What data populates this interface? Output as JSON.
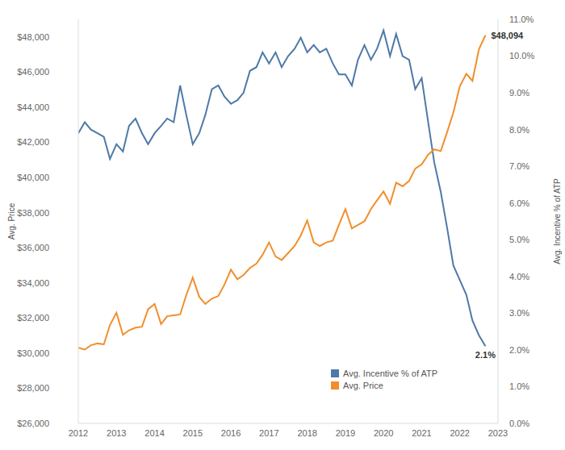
{
  "chart_data": {
    "type": "line",
    "x": [
      2012,
      2012.17,
      2012.33,
      2012.5,
      2012.67,
      2012.83,
      2013,
      2013.17,
      2013.33,
      2013.5,
      2013.67,
      2013.83,
      2014,
      2014.17,
      2014.33,
      2014.5,
      2014.67,
      2014.83,
      2015,
      2015.17,
      2015.33,
      2015.5,
      2015.67,
      2015.83,
      2016,
      2016.17,
      2016.33,
      2016.5,
      2016.67,
      2016.83,
      2017,
      2017.17,
      2017.33,
      2017.5,
      2017.67,
      2017.83,
      2018,
      2018.17,
      2018.33,
      2018.5,
      2018.67,
      2018.83,
      2019,
      2019.17,
      2019.33,
      2019.5,
      2019.67,
      2019.83,
      2020,
      2020.17,
      2020.33,
      2020.5,
      2020.67,
      2020.83,
      2021,
      2021.17,
      2021.33,
      2021.5,
      2021.67,
      2021.83,
      2022,
      2022.17,
      2022.33,
      2022.5,
      2022.67
    ],
    "series": [
      {
        "name": "Avg. Incentive % of ATP",
        "color": "#4e79a7",
        "axis": "y2",
        "values": [
          7.9,
          8.2,
          8.0,
          7.9,
          7.8,
          7.2,
          7.6,
          7.4,
          8.1,
          8.3,
          7.9,
          7.6,
          7.9,
          8.1,
          8.3,
          8.2,
          9.2,
          8.4,
          7.6,
          7.9,
          8.4,
          9.1,
          9.2,
          8.9,
          8.7,
          8.8,
          9.0,
          9.6,
          9.7,
          10.1,
          9.8,
          10.1,
          9.7,
          10.0,
          10.2,
          10.5,
          10.1,
          10.3,
          10.1,
          10.2,
          9.8,
          9.5,
          9.5,
          9.2,
          9.9,
          10.3,
          9.9,
          10.2,
          10.7,
          10.0,
          10.6,
          10.0,
          9.9,
          9.1,
          9.4,
          8.2,
          7.1,
          6.3,
          5.3,
          4.3,
          3.9,
          3.5,
          2.8,
          2.4,
          2.1
        ]
      },
      {
        "name": "Avg. Price",
        "color": "#f28e2b",
        "values": [
          30300,
          30200,
          30450,
          30550,
          30500,
          31600,
          32300,
          31050,
          31300,
          31450,
          31500,
          32500,
          32800,
          31650,
          32100,
          32150,
          32200,
          33300,
          34300,
          33200,
          32800,
          33100,
          33250,
          33900,
          34750,
          34200,
          34450,
          34850,
          35100,
          35600,
          36300,
          35500,
          35300,
          35700,
          36100,
          36700,
          37550,
          36300,
          36100,
          36300,
          36400,
          37300,
          38200,
          37100,
          37300,
          37500,
          38200,
          38700,
          39200,
          38500,
          39700,
          39500,
          39800,
          40500,
          40750,
          41300,
          41600,
          41500,
          42600,
          43700,
          45200,
          45900,
          45500,
          47300,
          48094
        ]
      }
    ],
    "y_label": "Avg. Price",
    "y2_label": "Avg. Incentive % of ATP",
    "xlim": [
      2012,
      2023
    ],
    "xticks": [
      2012,
      2013,
      2014,
      2015,
      2016,
      2017,
      2018,
      2019,
      2020,
      2021,
      2022,
      2023
    ],
    "ylim": [
      26000,
      49000
    ],
    "yticks": [
      {
        "value": 26000,
        "label": "$26,000"
      },
      {
        "value": 28000,
        "label": "$28,000"
      },
      {
        "value": 30000,
        "label": "$30,000"
      },
      {
        "value": 32000,
        "label": "$32,000"
      },
      {
        "value": 34000,
        "label": "$34,000"
      },
      {
        "value": 36000,
        "label": "$36,000"
      },
      {
        "value": 38000,
        "label": "$38,000"
      },
      {
        "value": 40000,
        "label": "$40,000"
      },
      {
        "value": 42000,
        "label": "$42,000"
      },
      {
        "value": 44000,
        "label": "$44,000"
      },
      {
        "value": 46000,
        "label": "$46,000"
      },
      {
        "value": 48000,
        "label": "$48,000"
      }
    ],
    "y2lim": [
      0,
      11
    ],
    "y2ticks": [
      {
        "value": 0,
        "label": "0.0%"
      },
      {
        "value": 1,
        "label": "1.0%"
      },
      {
        "value": 2,
        "label": "2.0%"
      },
      {
        "value": 3,
        "label": "3.0%"
      },
      {
        "value": 4,
        "label": "4.0%"
      },
      {
        "value": 5,
        "label": "5.0%"
      },
      {
        "value": 6,
        "label": "6.0%"
      },
      {
        "value": 7,
        "label": "7.0%"
      },
      {
        "value": 8,
        "label": "8.0%"
      },
      {
        "value": 9,
        "label": "9.0%"
      },
      {
        "value": 10,
        "label": "10.0%"
      },
      {
        "value": 11,
        "label": "11.0%"
      }
    ],
    "grid": false,
    "legend": "lower right",
    "annotations": [
      {
        "x": 2022.67,
        "y": 48094,
        "text": "$48,094",
        "axis": "y"
      },
      {
        "x": 2022.67,
        "y": 2.1,
        "text": "2.1%",
        "axis": "y2"
      }
    ]
  }
}
